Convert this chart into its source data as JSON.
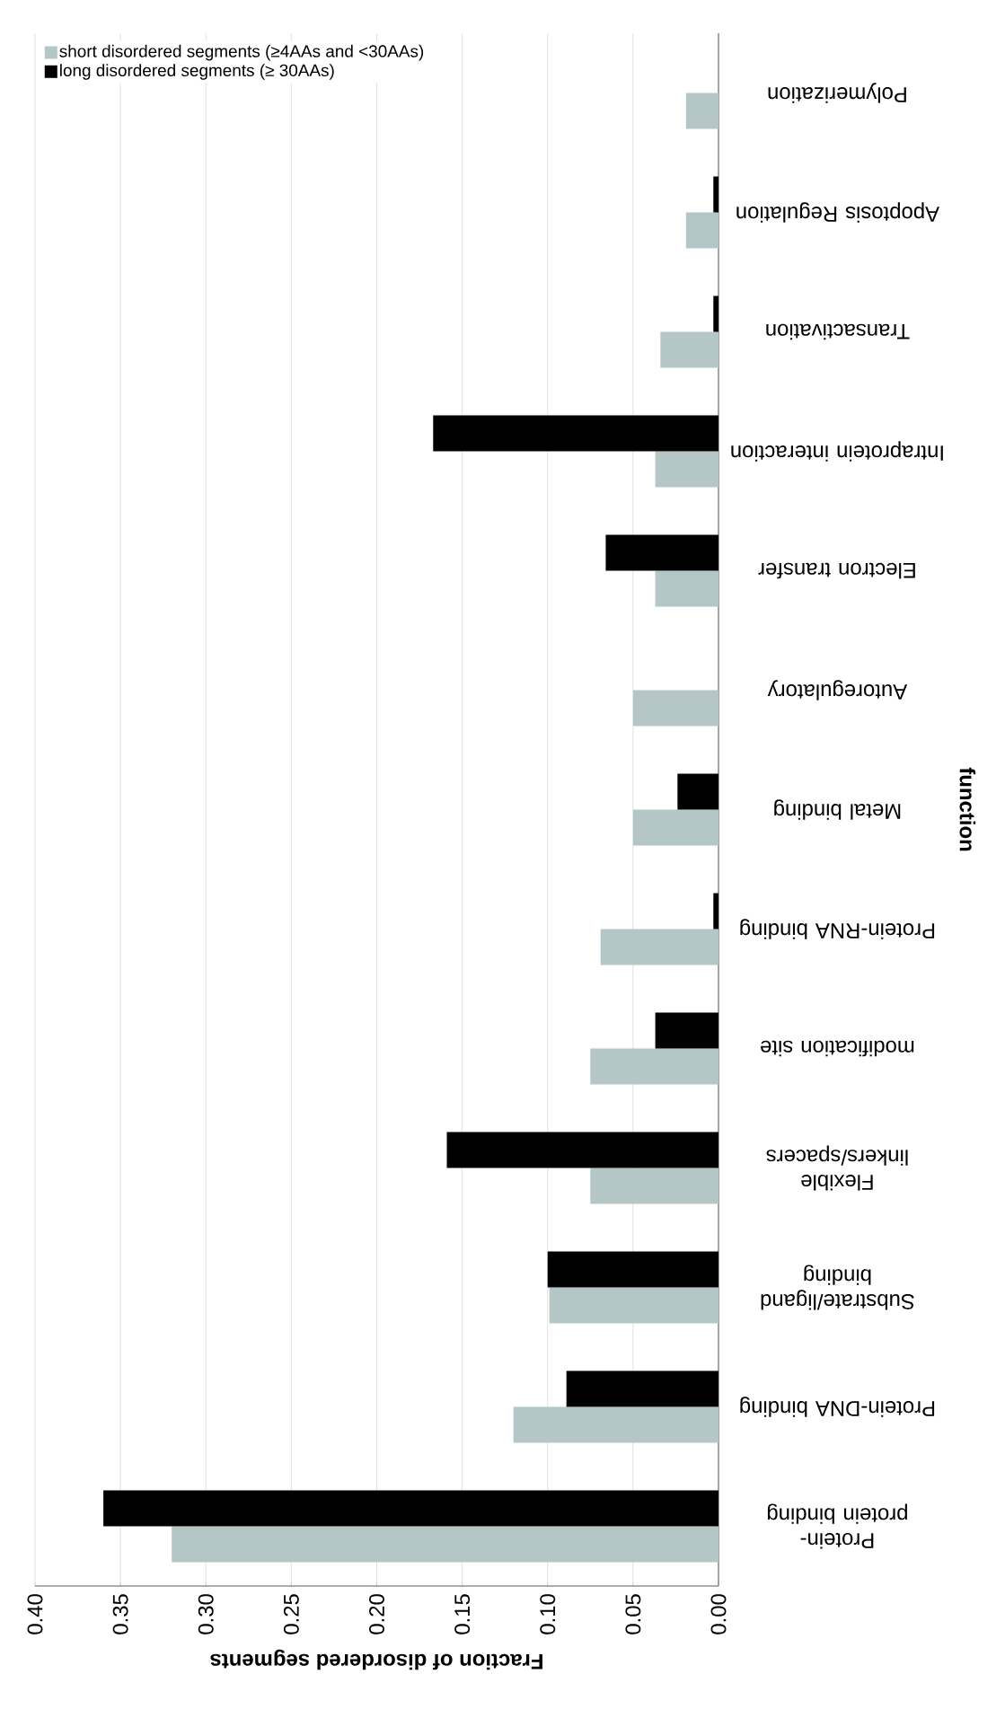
{
  "chart_data": {
    "type": "bar",
    "orientation": "horizontal",
    "xlabel": "Fraction of disordered segments",
    "ylabel": "function",
    "categories": [
      "Polymerization",
      "Apoptosis Regulation",
      "Transactivation",
      "Intraprotein interaction",
      "Electron transfer",
      "Autoregulatory",
      "Metal binding",
      "Protein-RNA binding",
      "modification site",
      "Flexible linkers/spacers",
      "Substrate/ligand binding",
      "Protein-DNA binding",
      "Protein-protein binding"
    ],
    "series": [
      {
        "name": "short disordered segments (≥4AAs and <30AAs)",
        "color": "#b4c6c6",
        "values": [
          0.019,
          0.019,
          0.034,
          0.037,
          0.037,
          0.05,
          0.05,
          0.069,
          0.075,
          0.075,
          0.099,
          0.12,
          0.32
        ]
      },
      {
        "name": "long disordered segments (≥ 30AAs)",
        "color": "#000000",
        "values": [
          null,
          0.003,
          0.003,
          0.167,
          0.066,
          null,
          0.024,
          0.003,
          0.037,
          0.159,
          0.1,
          0.089,
          0.36
        ]
      }
    ],
    "xlim": [
      0.4,
      0
    ],
    "xticks": [
      {
        "value": 0,
        "label": "0.00"
      },
      {
        "value": 0.05,
        "label": "0.05"
      },
      {
        "value": 0.1,
        "label": "0.10"
      },
      {
        "value": 0.15,
        "label": "0.15"
      },
      {
        "value": 0.2,
        "label": "0.20"
      },
      {
        "value": 0.25,
        "label": "0.25"
      },
      {
        "value": 0.3,
        "label": "0.30"
      },
      {
        "value": 0.35,
        "label": "0.35"
      },
      {
        "value": 0.4,
        "label": "0.40"
      }
    ],
    "grid": "x",
    "legend": "top left"
  }
}
